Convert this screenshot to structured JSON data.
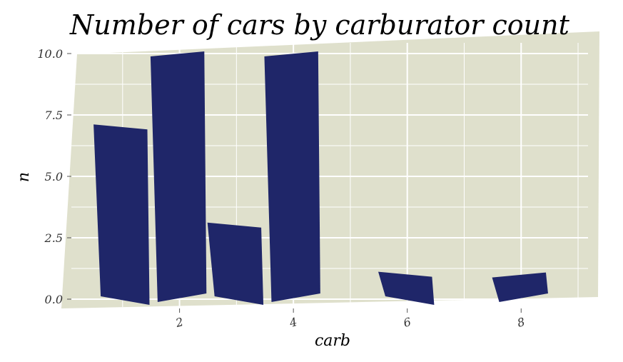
{
  "chart_data": {
    "type": "bar",
    "title": "Number of cars by carburator count",
    "xlabel": "carb",
    "ylabel": "n",
    "categories": [
      1,
      2,
      3,
      4,
      6,
      8
    ],
    "values": [
      7,
      10,
      3,
      10,
      1,
      1
    ],
    "xlim": [
      0.1,
      9.2
    ],
    "ylim": [
      -0.3,
      10.4
    ],
    "x_ticks": [
      2,
      4,
      6,
      8
    ],
    "x_tick_labels": [
      "2",
      "4",
      "6",
      "8"
    ],
    "y_ticks": [
      0,
      2.5,
      5,
      7.5,
      10
    ],
    "y_tick_labels": [
      "0.0",
      "2.5",
      "5.0",
      "7.5",
      "10.0"
    ],
    "grid": true,
    "colors": {
      "bar": "#1f2669",
      "panel": "#dfe0cc",
      "grid": "#ffffff"
    }
  }
}
